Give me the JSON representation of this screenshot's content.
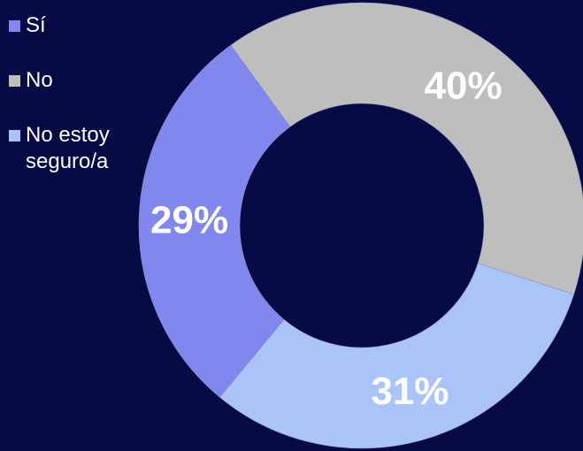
{
  "chart_data": {
    "type": "pie",
    "donut": true,
    "categories": [
      "Sí",
      "No",
      "No estoy\nseguro/a"
    ],
    "values": [
      29,
      40,
      31
    ],
    "value_labels": [
      "29%",
      "40%",
      "31%"
    ],
    "colors": [
      "#8088f0",
      "#bebebe",
      "#aac4fa"
    ],
    "legend_position": "top-left",
    "start_angle_deg": -36,
    "slice_order": [
      1,
      2,
      0
    ]
  },
  "background_color": "#060a45"
}
